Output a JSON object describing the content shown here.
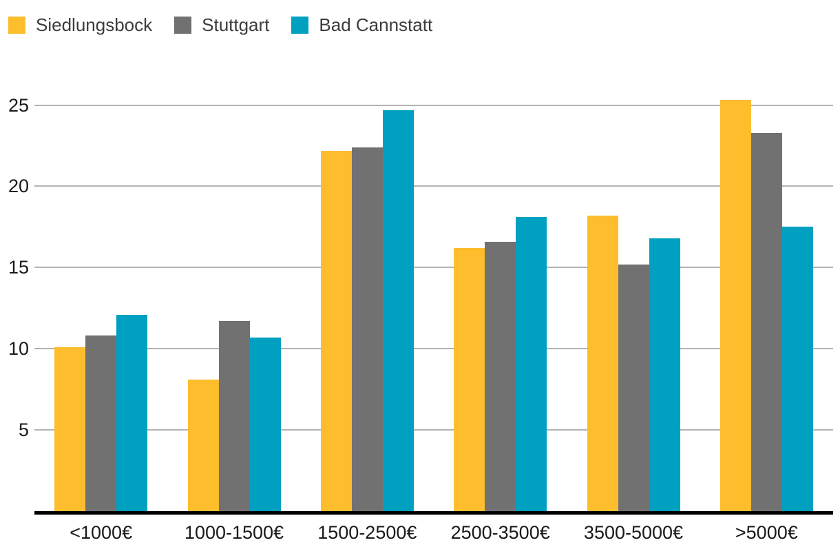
{
  "chart_data": {
    "type": "bar",
    "title": "",
    "xlabel": "",
    "ylabel": "",
    "categories": [
      "<1000€",
      "1000-1500€",
      "1500-2500€",
      "2500-3500€",
      "3500-5000€",
      ">5000€"
    ],
    "series": [
      {
        "name": "Siedlungsbock",
        "color": "#FDBD2D",
        "values": [
          10.1,
          8.1,
          22.2,
          16.2,
          18.2,
          25.3
        ]
      },
      {
        "name": "Stuttgart",
        "color": "#717171",
        "values": [
          10.8,
          11.7,
          22.4,
          16.6,
          15.2,
          23.3
        ]
      },
      {
        "name": "Bad Cannstatt",
        "color": "#00A0C1",
        "values": [
          12.1,
          10.7,
          24.7,
          18.1,
          16.8,
          17.5
        ]
      }
    ],
    "y_ticks": [
      5,
      10,
      15,
      20,
      25
    ],
    "ylim": [
      0,
      26.5
    ],
    "grid": true,
    "legend_position": "top-left"
  },
  "style": {
    "background": "#ffffff",
    "grid_color": "#b3b3b3",
    "axis_color": "#000000",
    "tick_text_color": "#1a1a1a",
    "legend_text_color": "#3c3c3c"
  }
}
